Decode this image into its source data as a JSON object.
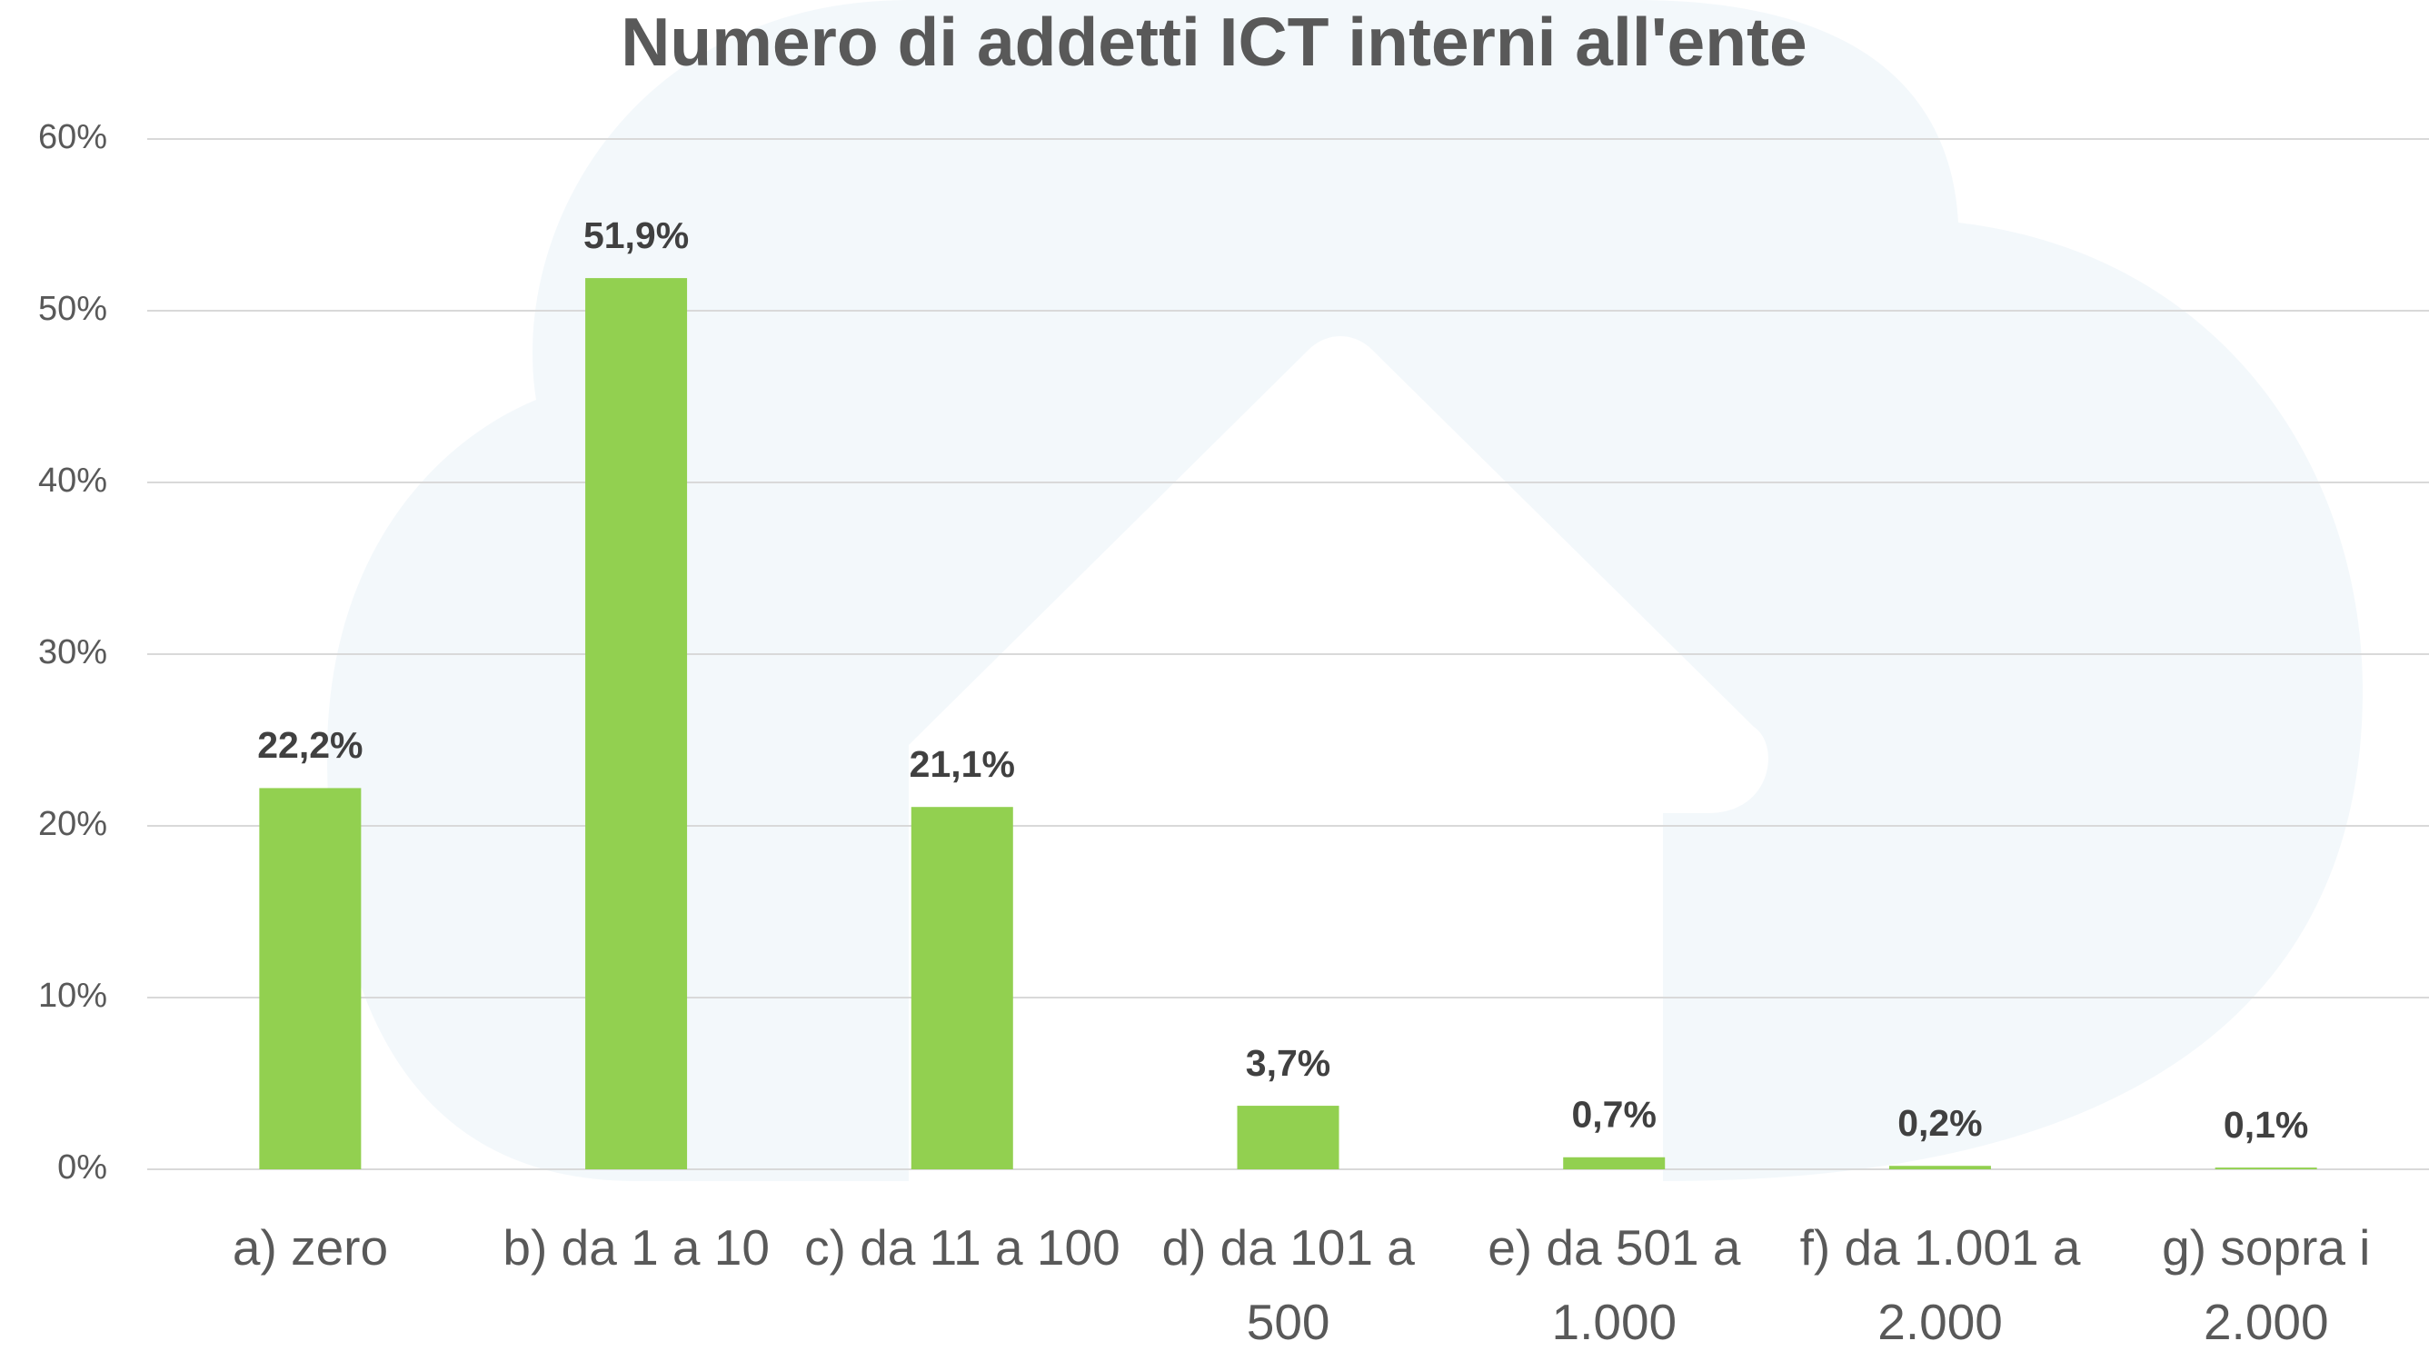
{
  "chart_data": {
    "type": "bar",
    "title": "Numero di addetti ICT interni all'ente",
    "categories": [
      "a) zero",
      "b) da 1 a 10",
      "c) da 11 a 100",
      "d) da 101 a 500",
      "e) da 501 a 1.000",
      "f) da 1.001 a 2.000",
      "g) sopra i 2.000"
    ],
    "values": [
      22.2,
      51.9,
      21.1,
      3.7,
      0.7,
      0.2,
      0.1
    ],
    "value_labels": [
      "22,2%",
      "51,9%",
      "21,1%",
      "3,7%",
      "0,7%",
      "0,2%",
      "0,1%"
    ],
    "color": "#92d050",
    "ylim": [
      0,
      60
    ],
    "yticks": [
      {
        "value": 0,
        "label": "0%"
      },
      {
        "value": 10,
        "label": "10%"
      },
      {
        "value": 20,
        "label": "20%"
      },
      {
        "value": 30,
        "label": "30%"
      },
      {
        "value": 40,
        "label": "40%"
      },
      {
        "value": 50,
        "label": "50%"
      },
      {
        "value": 60,
        "label": "60%"
      }
    ],
    "grid": true
  }
}
